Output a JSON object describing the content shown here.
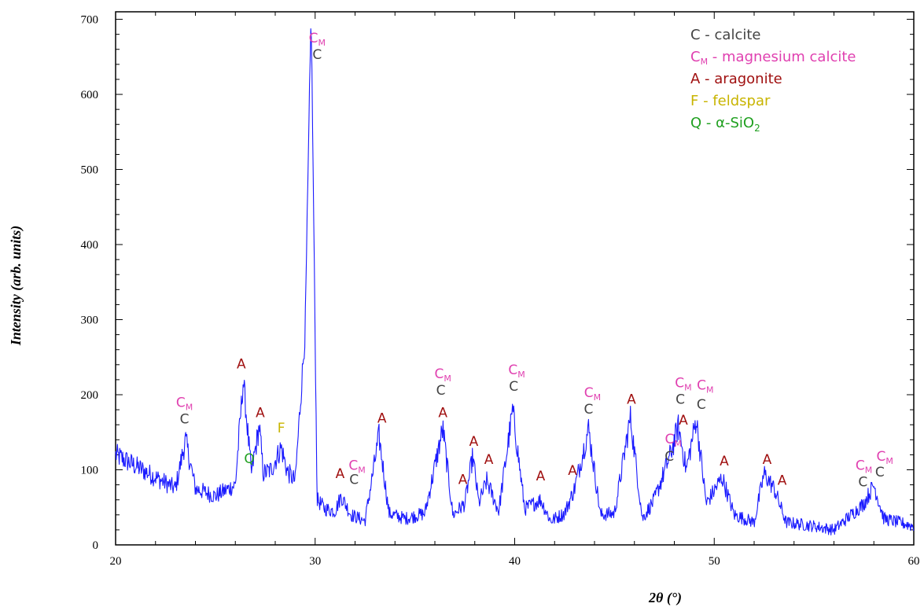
{
  "chart_data": {
    "type": "line",
    "xlabel": "2θ (°)",
    "ylabel": "Intensity (arb. units)",
    "xlim": [
      20,
      60
    ],
    "ylim": [
      0,
      710
    ],
    "x_ticks": [
      20,
      30,
      40,
      50,
      60
    ],
    "y_ticks": [
      0,
      100,
      200,
      300,
      400,
      500,
      600,
      700
    ],
    "grid": false,
    "legend_position": "top-right",
    "colors": {
      "line": "#1a1aff",
      "calcite": "#444444",
      "magnesium_calcite": "#e040b0",
      "aragonite": "#a01010",
      "feldspar": "#c8b400",
      "quartz": "#20a020"
    },
    "legend": [
      {
        "symbol": "C",
        "sub": "",
        "label": " - calcite",
        "color_key": "calcite"
      },
      {
        "symbol": "C",
        "sub": "M",
        "label": " - magnesium calcite",
        "color_key": "magnesium_calcite"
      },
      {
        "symbol": "A",
        "sub": "",
        "label": " - aragonite",
        "color_key": "aragonite"
      },
      {
        "symbol": "F",
        "sub": "",
        "label": " - feldspar",
        "color_key": "feldspar"
      },
      {
        "symbol": "Q",
        "sub": "",
        "label": " - α-SiO",
        "label_sub": "2",
        "color_key": "quartz"
      }
    ],
    "series": [
      {
        "x": [
          20,
          21,
          22,
          23,
          23.5,
          24,
          25,
          26,
          26.4,
          26.8,
          27.2,
          27.4,
          27.8,
          28.3,
          28.6,
          29,
          29.5,
          29.8,
          30.1,
          30.5,
          31,
          31.3,
          31.8,
          32.5,
          33.2,
          33.7,
          34.5,
          35.5,
          36.4,
          36.9,
          37.5,
          37.9,
          38.2,
          38.6,
          39.2,
          39.9,
          40.5,
          41.3,
          41.8,
          42.5,
          43,
          43.7,
          44.3,
          45,
          45.8,
          46.4,
          47,
          47.8,
          48.2,
          48.6,
          49.1,
          49.6,
          50.4,
          51,
          52,
          52.5,
          53,
          53.6,
          55,
          56,
          57.5,
          58,
          58.5,
          60
        ],
        "values": [
          120,
          105,
          90,
          75,
          140,
          75,
          65,
          80,
          220,
          95,
          158,
          95,
          100,
          130,
          98,
          85,
          285,
          710,
          60,
          48,
          45,
          65,
          40,
          32,
          145,
          42,
          35,
          42,
          155,
          40,
          55,
          118,
          55,
          85,
          45,
          180,
          48,
          60,
          32,
          42,
          75,
          155,
          40,
          42,
          170,
          35,
          60,
          120,
          158,
          100,
          168,
          55,
          90,
          40,
          30,
          95,
          75,
          30,
          25,
          20,
          55,
          80,
          35,
          25
        ]
      }
    ],
    "annotations": [
      {
        "x": 23.45,
        "y": 162,
        "label": "C",
        "sub": "",
        "color_key": "calcite"
      },
      {
        "x": 23.45,
        "y": 184,
        "label": "C",
        "sub": "M",
        "color_key": "magnesium_calcite"
      },
      {
        "x": 26.3,
        "y": 235,
        "label": "A",
        "sub": "",
        "color_key": "aragonite"
      },
      {
        "x": 27.25,
        "y": 170,
        "label": "A",
        "sub": "",
        "color_key": "aragonite"
      },
      {
        "x": 26.7,
        "y": 109,
        "label": "Q",
        "sub": "",
        "color_key": "quartz"
      },
      {
        "x": 28.3,
        "y": 150,
        "label": "F",
        "sub": "",
        "color_key": "feldspar"
      },
      {
        "x": 30.1,
        "y": 647,
        "label": "C",
        "sub": "",
        "color_key": "calcite"
      },
      {
        "x": 30.1,
        "y": 669,
        "label": "C",
        "sub": "M",
        "color_key": "magnesium_calcite"
      },
      {
        "x": 31.25,
        "y": 89,
        "label": "A",
        "sub": "",
        "color_key": "aragonite"
      },
      {
        "x": 31.95,
        "y": 81,
        "label": "C",
        "sub": "",
        "color_key": "calcite"
      },
      {
        "x": 32.1,
        "y": 100,
        "label": "C",
        "sub": "M",
        "color_key": "magnesium_calcite"
      },
      {
        "x": 33.35,
        "y": 163,
        "label": "A",
        "sub": "",
        "color_key": "aragonite"
      },
      {
        "x": 36.3,
        "y": 200,
        "label": "C",
        "sub": "",
        "color_key": "calcite"
      },
      {
        "x": 36.4,
        "y": 222,
        "label": "C",
        "sub": "M",
        "color_key": "magnesium_calcite"
      },
      {
        "x": 36.4,
        "y": 170,
        "label": "A",
        "sub": "",
        "color_key": "aragonite"
      },
      {
        "x": 37.4,
        "y": 81,
        "label": "A",
        "sub": "",
        "color_key": "aragonite"
      },
      {
        "x": 37.95,
        "y": 132,
        "label": "A",
        "sub": "",
        "color_key": "aragonite"
      },
      {
        "x": 38.7,
        "y": 108,
        "label": "A",
        "sub": "",
        "color_key": "aragonite"
      },
      {
        "x": 39.95,
        "y": 205,
        "label": "C",
        "sub": "",
        "color_key": "calcite"
      },
      {
        "x": 40.1,
        "y": 227,
        "label": "C",
        "sub": "M",
        "color_key": "magnesium_calcite"
      },
      {
        "x": 41.3,
        "y": 86,
        "label": "A",
        "sub": "",
        "color_key": "aragonite"
      },
      {
        "x": 42.9,
        "y": 93,
        "label": "A",
        "sub": "",
        "color_key": "aragonite"
      },
      {
        "x": 43.7,
        "y": 175,
        "label": "C",
        "sub": "",
        "color_key": "calcite"
      },
      {
        "x": 43.9,
        "y": 197,
        "label": "C",
        "sub": "M",
        "color_key": "magnesium_calcite"
      },
      {
        "x": 45.85,
        "y": 188,
        "label": "A",
        "sub": "",
        "color_key": "aragonite"
      },
      {
        "x": 47.75,
        "y": 112,
        "label": "C",
        "sub": "",
        "color_key": "calcite"
      },
      {
        "x": 47.95,
        "y": 135,
        "label": "C",
        "sub": "M",
        "color_key": "magnesium_calcite"
      },
      {
        "x": 48.45,
        "y": 160,
        "label": "A",
        "sub": "",
        "color_key": "aragonite"
      },
      {
        "x": 48.3,
        "y": 188,
        "label": "C",
        "sub": "",
        "color_key": "calcite"
      },
      {
        "x": 48.45,
        "y": 210,
        "label": "C",
        "sub": "M",
        "color_key": "magnesium_calcite"
      },
      {
        "x": 49.35,
        "y": 181,
        "label": "C",
        "sub": "",
        "color_key": "calcite"
      },
      {
        "x": 49.55,
        "y": 207,
        "label": "C",
        "sub": "M",
        "color_key": "magnesium_calcite"
      },
      {
        "x": 50.5,
        "y": 106,
        "label": "A",
        "sub": "",
        "color_key": "aragonite"
      },
      {
        "x": 52.65,
        "y": 108,
        "label": "A",
        "sub": "",
        "color_key": "aragonite"
      },
      {
        "x": 53.4,
        "y": 80,
        "label": "A",
        "sub": "",
        "color_key": "aragonite"
      },
      {
        "x": 57.45,
        "y": 78,
        "label": "C",
        "sub": "",
        "color_key": "calcite"
      },
      {
        "x": 57.5,
        "y": 100,
        "label": "C",
        "sub": "M",
        "color_key": "magnesium_calcite"
      },
      {
        "x": 58.3,
        "y": 91,
        "label": "C",
        "sub": "",
        "color_key": "calcite"
      },
      {
        "x": 58.55,
        "y": 112,
        "label": "C",
        "sub": "M",
        "color_key": "magnesium_calcite"
      }
    ]
  }
}
